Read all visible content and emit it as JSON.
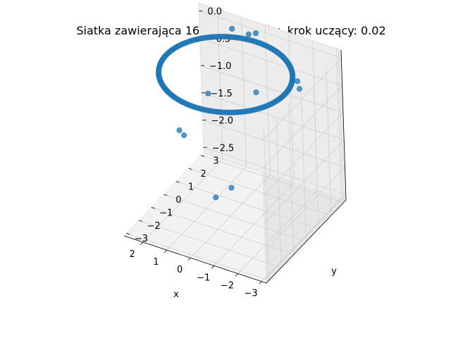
{
  "chart_data": {
    "type": "scatter",
    "projection": "3d",
    "title": "Siatka zawierająca 1600 elementów, krok uczący: 0.02",
    "xlabel": "x",
    "ylabel": "y",
    "zlabel": "",
    "xlim": [
      -3.2,
      2.8
    ],
    "ylim": [
      -3.2,
      3.2
    ],
    "zlim": [
      -2.6,
      0.15
    ],
    "xticks": [
      -3,
      -2,
      -1,
      0,
      1,
      2
    ],
    "yticks": [
      -3,
      -2,
      -1,
      0,
      1,
      2,
      3
    ],
    "zticks": [
      0.0,
      -0.5,
      -1.0,
      -1.5,
      -2.0,
      -2.5
    ],
    "xtick_labels": [
      "−3",
      "−2",
      "−1",
      "0",
      "1",
      "2"
    ],
    "ytick_labels": [
      "−3",
      "−2",
      "−1",
      "0",
      "1",
      "2",
      "3"
    ],
    "ztick_labels": [
      "0.0",
      "−0.5",
      "−1.0",
      "−1.5",
      "−2.0",
      "−2.5"
    ],
    "grid": true,
    "marker_color": "#1f77b4",
    "series": [
      {
        "description": "dense ring of points",
        "ring": {
          "center_x": 0.0,
          "center_y": 0.0,
          "radius": 2.5,
          "z": 0.0,
          "count": 200
        }
      },
      {
        "description": "scattered outlier points",
        "points": [
          {
            "x": -0.2,
            "y": -0.2,
            "z": -2.0
          },
          {
            "x": 0.7,
            "y": 0.2,
            "z": -2.4
          },
          {
            "x": 0.5,
            "y": -0.5,
            "z": -0.3
          },
          {
            "x": -1.0,
            "y": 0.5,
            "z": -0.3
          },
          {
            "x": 2.0,
            "y": 1.5,
            "z": 0.0
          },
          {
            "x": -2.8,
            "y": 0.6,
            "z": 0.0
          },
          {
            "x": -2.5,
            "y": 1.0,
            "z": 0.0
          },
          {
            "x": 1.5,
            "y": -1.0,
            "z": -1.0
          },
          {
            "x": 1.2,
            "y": -1.2,
            "z": -1.0
          },
          {
            "x": 1.2,
            "y": 2.8,
            "z": 0.0
          },
          {
            "x": 0.5,
            "y": 2.8,
            "z": 0.0
          },
          {
            "x": 0.3,
            "y": 3.0,
            "z": 0.0
          }
        ]
      }
    ]
  }
}
